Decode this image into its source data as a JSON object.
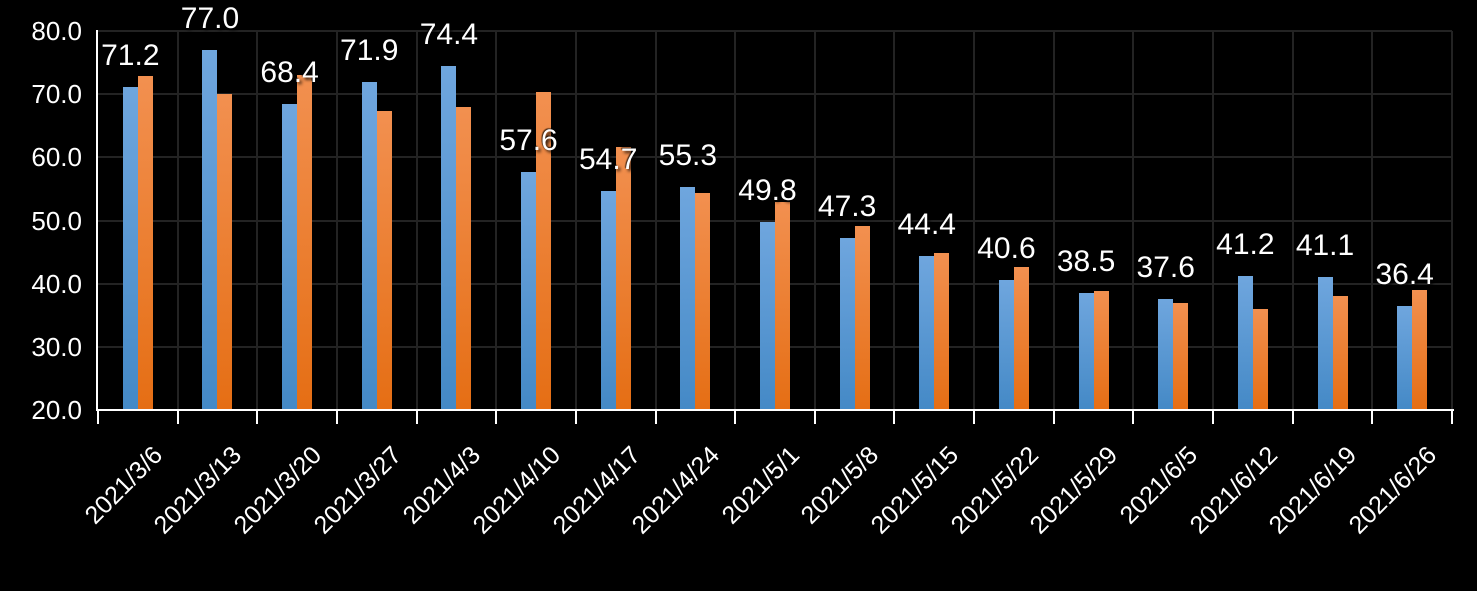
{
  "chart_data": {
    "type": "bar",
    "title": "",
    "xlabel": "",
    "ylabel": "",
    "legend": "none",
    "grid": true,
    "categories": [
      "2021/3/6",
      "2021/3/13",
      "2021/3/20",
      "2021/3/27",
      "2021/4/3",
      "2021/4/10",
      "2021/4/17",
      "2021/4/24",
      "2021/5/1",
      "2021/5/8",
      "2021/5/15",
      "2021/5/22",
      "2021/5/29",
      "2021/6/5",
      "2021/6/12",
      "2021/6/19",
      "2021/6/26"
    ],
    "series": [
      {
        "name": "blue-series",
        "color_top": "#6FA6DE",
        "color_bottom": "#4489C6",
        "has_data_labels": true,
        "values": [
          71.2,
          77.0,
          68.4,
          71.9,
          74.4,
          57.6,
          54.7,
          55.3,
          49.8,
          47.3,
          44.4,
          40.6,
          38.5,
          37.6,
          41.2,
          41.1,
          36.4
        ]
      },
      {
        "name": "orange-series",
        "color_top": "#F29050",
        "color_bottom": "#E56E14",
        "has_data_labels": false,
        "values": [
          72.8,
          70.1,
          73.1,
          67.4,
          68.0,
          70.4,
          61.6,
          54.3,
          53.0,
          49.2,
          44.8,
          42.6,
          38.8,
          37.0,
          36.0,
          38.0,
          39.0
        ]
      }
    ],
    "data_labels": [
      "71.2",
      "77.0",
      "68.4",
      "71.9",
      "74.4",
      "57.6",
      "54.7",
      "55.3",
      "49.8",
      "47.3",
      "44.4",
      "40.6",
      "38.5",
      "37.6",
      "41.2",
      "41.1",
      "36.4"
    ],
    "y_axis": {
      "min": 20,
      "max": 80,
      "step": 10,
      "tick_labels": [
        "80.0",
        "70.0",
        "60.0",
        "50.0",
        "40.0",
        "30.0",
        "20.0"
      ]
    },
    "colors": {
      "background": "#000000",
      "gridline": "#232323",
      "axis_line": "#FFFFFF",
      "text": "#FFFFFF"
    }
  }
}
